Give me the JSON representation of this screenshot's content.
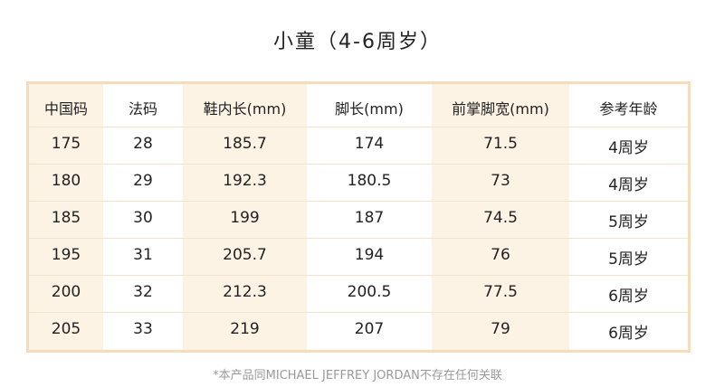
{
  "header": {
    "title": "小童（4-6周岁）"
  },
  "table": {
    "columns": [
      "中国码",
      "法码",
      "鞋内长(mm)",
      "脚长(mm)",
      "前掌脚宽(mm)",
      "参考年龄"
    ],
    "rows": [
      [
        175,
        28,
        185.7,
        174,
        71.5,
        "4周岁"
      ],
      [
        180,
        29,
        192.3,
        180.5,
        73,
        "4周岁"
      ],
      [
        185,
        30,
        199,
        187,
        74.5,
        "5周岁"
      ],
      [
        195,
        31,
        205.7,
        194,
        76,
        "5周岁"
      ],
      [
        200,
        32,
        212.3,
        200.5,
        77.5,
        "6周岁"
      ],
      [
        205,
        33,
        219,
        207,
        79,
        "6周岁"
      ]
    ]
  },
  "footer": {
    "note": "*本产品同MICHAEL JEFFREY JORDAN不存在任何关联"
  }
}
